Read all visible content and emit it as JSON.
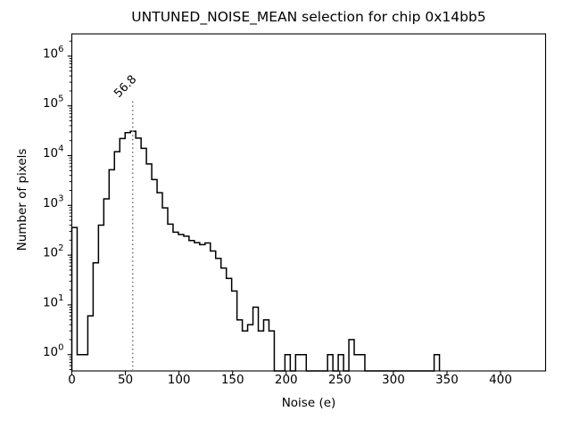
{
  "chart_data": {
    "type": "histogram-step",
    "title": "UNTUNED_NOISE_MEAN selection for chip 0x14bb5",
    "xlabel": "Noise (e)",
    "ylabel": "Number of pixels",
    "yscale": "log",
    "grid": false,
    "legend": null,
    "xlim": [
      0,
      442
    ],
    "ylim": [
      0.47,
      2800000
    ],
    "x_ticks": [
      0,
      50,
      100,
      150,
      200,
      250,
      300,
      350,
      400
    ],
    "y_tick_exponents": [
      0,
      1,
      2,
      3,
      4,
      5,
      6
    ],
    "bins": {
      "start": 0,
      "width": 4.971,
      "n": 69
    },
    "counts": [
      360,
      1,
      1,
      6,
      70,
      400,
      1350,
      5200,
      12000,
      22000,
      29000,
      31000,
      22500,
      14000,
      6800,
      3300,
      1800,
      890,
      420,
      290,
      260,
      240,
      196,
      178,
      162,
      175,
      121,
      86,
      55,
      34,
      19,
      5,
      3,
      4,
      9,
      3,
      5,
      3,
      0,
      0,
      1,
      0,
      1,
      1,
      0,
      0,
      0,
      0,
      1,
      0,
      1,
      0,
      2,
      1,
      1,
      0,
      0,
      0,
      0,
      0,
      0,
      0,
      0,
      0,
      0,
      0,
      0,
      0,
      1
    ],
    "vline": {
      "x": 56.8,
      "label": "56.8",
      "color": "#808080",
      "style": "dotted",
      "top_fraction": 0.8
    },
    "line_color": "#000000",
    "background_color": "#ffffff",
    "axis_color": "#000000"
  }
}
